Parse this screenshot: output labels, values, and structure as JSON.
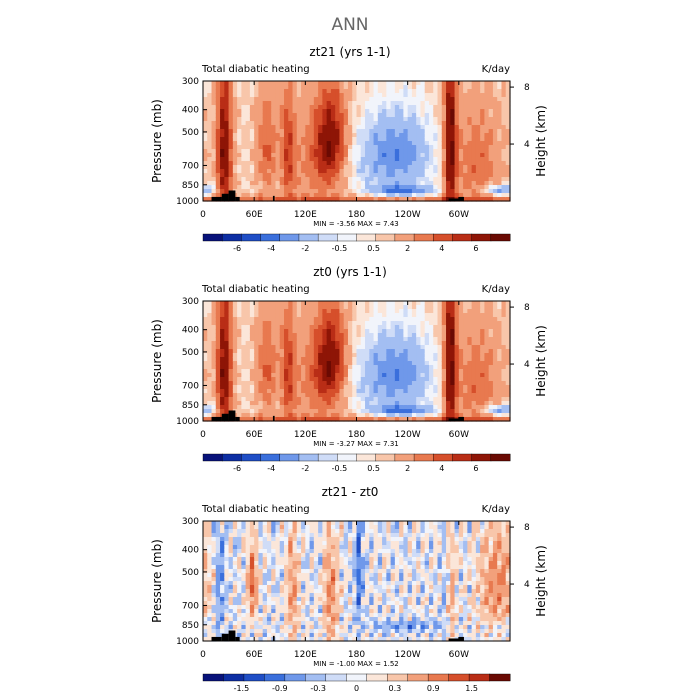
{
  "page_title": "ANN",
  "chart_data": [
    {
      "type": "heatmap",
      "title": "zt21 (yrs 1-1)",
      "subtitle_left": "Total diabatic heating",
      "subtitle_right": "K/day",
      "xlabel": "",
      "ylabel": "Pressure (mb)",
      "ylabel_right": "Height (km)",
      "x_ticks": [
        "0",
        "60E",
        "120E",
        "180",
        "120W",
        "60W"
      ],
      "x_tick_values": [
        0,
        60,
        120,
        180,
        240,
        300
      ],
      "xlim": [
        0,
        360
      ],
      "y_ticks": [
        "300",
        "400",
        "500",
        "700",
        "850",
        "1000"
      ],
      "y_tick_values": [
        300,
        400,
        500,
        700,
        850,
        1000
      ],
      "ylim": [
        1000,
        300
      ],
      "right_ticks": [
        "8",
        "4"
      ],
      "right_tick_values": [
        8,
        4
      ],
      "stats": "MIN =   -3.56   MAX =    7.43",
      "colorbar": {
        "labels": [
          "-6",
          "-4",
          "-2",
          "-0.5",
          "0.5",
          "2",
          "4",
          "6"
        ],
        "colors": [
          "#08127a",
          "#0d2ea3",
          "#1f4ec6",
          "#3a6fdc",
          "#6f98ea",
          "#a3bef2",
          "#cfdcf7",
          "#f1f4fb",
          "#fbe6d9",
          "#f8c6aa",
          "#f2a07b",
          "#e8794f",
          "#d64f2b",
          "#b92d16",
          "#8e1506",
          "#6a0a03"
        ]
      },
      "field": "full"
    },
    {
      "type": "heatmap",
      "title": "zt0 (yrs 1-1)",
      "subtitle_left": "Total diabatic heating",
      "subtitle_right": "K/day",
      "xlabel": "",
      "ylabel": "Pressure (mb)",
      "ylabel_right": "Height (km)",
      "x_ticks": [
        "0",
        "60E",
        "120E",
        "180",
        "120W",
        "60W"
      ],
      "x_tick_values": [
        0,
        60,
        120,
        180,
        240,
        300
      ],
      "xlim": [
        0,
        360
      ],
      "y_ticks": [
        "300",
        "400",
        "500",
        "700",
        "850",
        "1000"
      ],
      "y_tick_values": [
        300,
        400,
        500,
        700,
        850,
        1000
      ],
      "ylim": [
        1000,
        300
      ],
      "right_ticks": [
        "8",
        "4"
      ],
      "right_tick_values": [
        8,
        4
      ],
      "stats": "MIN =   -3.27   MAX =    7.31",
      "colorbar": {
        "labels": [
          "-6",
          "-4",
          "-2",
          "-0.5",
          "0.5",
          "2",
          "4",
          "6"
        ],
        "colors": [
          "#08127a",
          "#0d2ea3",
          "#1f4ec6",
          "#3a6fdc",
          "#6f98ea",
          "#a3bef2",
          "#cfdcf7",
          "#f1f4fb",
          "#fbe6d9",
          "#f8c6aa",
          "#f2a07b",
          "#e8794f",
          "#d64f2b",
          "#b92d16",
          "#8e1506",
          "#6a0a03"
        ]
      },
      "field": "full"
    },
    {
      "type": "heatmap",
      "title": "zt21 - zt0",
      "subtitle_left": "Total diabatic heating",
      "subtitle_right": "K/day",
      "xlabel": "",
      "ylabel": "Pressure (mb)",
      "ylabel_right": "Height (km)",
      "x_ticks": [
        "0",
        "60E",
        "120E",
        "180",
        "120W",
        "60W"
      ],
      "x_tick_values": [
        0,
        60,
        120,
        180,
        240,
        300
      ],
      "xlim": [
        0,
        360
      ],
      "y_ticks": [
        "300",
        "400",
        "500",
        "700",
        "850",
        "1000"
      ],
      "y_tick_values": [
        300,
        400,
        500,
        700,
        850,
        1000
      ],
      "ylim": [
        1000,
        300
      ],
      "right_ticks": [
        "8",
        "4"
      ],
      "right_tick_values": [
        8,
        4
      ],
      "stats": "MIN =   -1.00   MAX =    1.52",
      "colorbar": {
        "labels": [
          "-1.5",
          "-0.9",
          "-0.3",
          "0",
          "0.3",
          "0.9",
          "1.5"
        ],
        "colors": [
          "#08127a",
          "#0d2ea3",
          "#1f4ec6",
          "#3a6fdc",
          "#6f98ea",
          "#a3bef2",
          "#cfdcf7",
          "#f1f4fb",
          "#fbe6d9",
          "#f8c6aa",
          "#f2a07b",
          "#e8794f",
          "#d64f2b",
          "#b92d16",
          "#6a0a03"
        ]
      },
      "field": "diff"
    }
  ]
}
